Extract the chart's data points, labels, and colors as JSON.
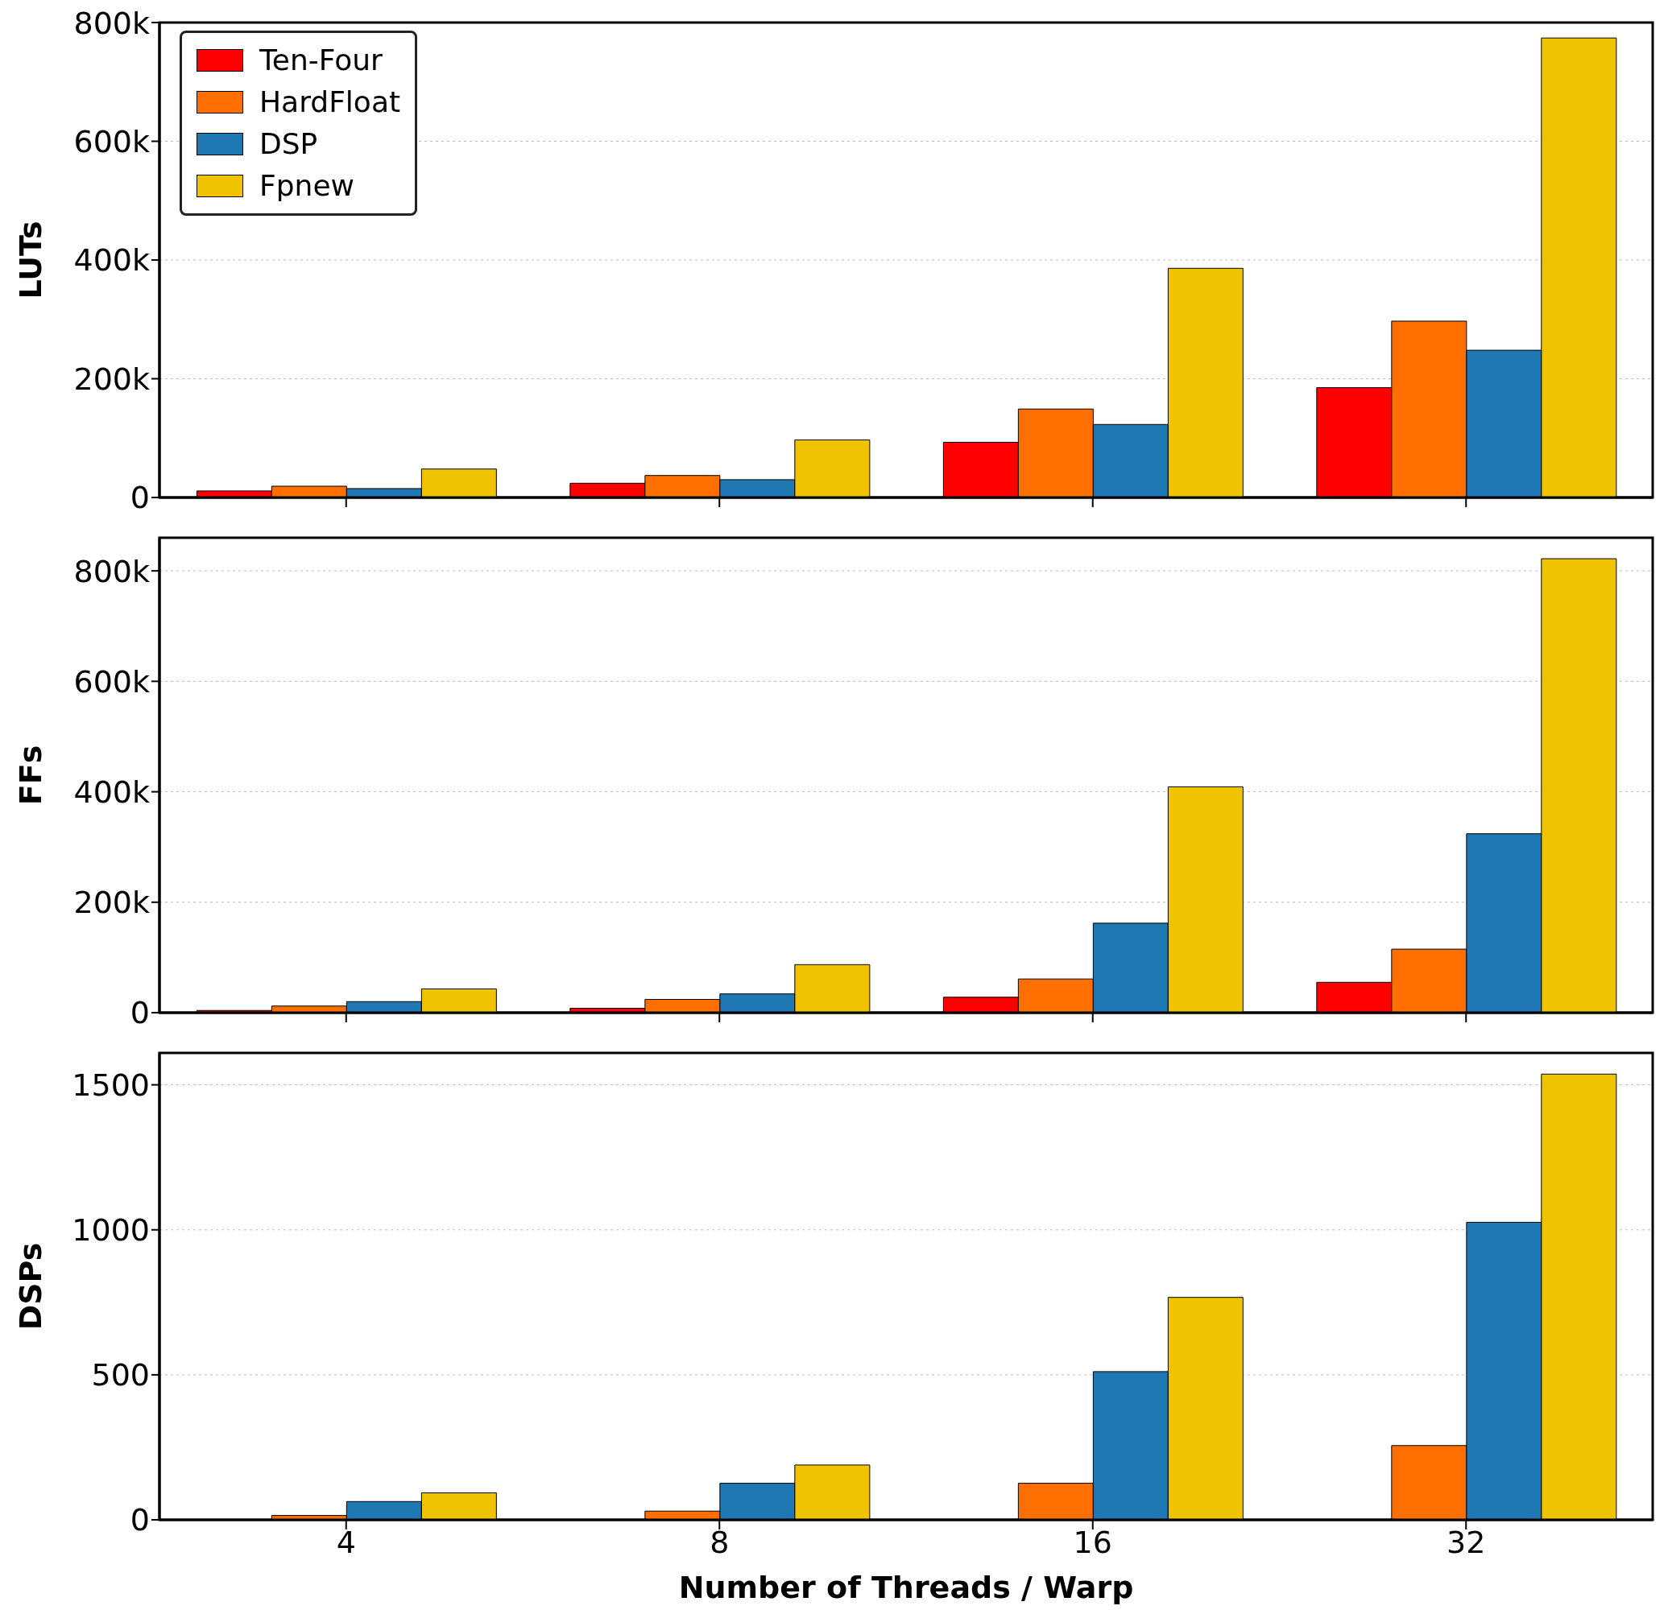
{
  "chart_data": [
    {
      "type": "bar",
      "ylabel": "LUTs",
      "categories": [
        "4",
        "8",
        "16",
        "32"
      ],
      "ylim": [
        0,
        800000
      ],
      "yticks": [
        {
          "value": 0,
          "label": "0"
        },
        {
          "value": 200000,
          "label": "200k"
        },
        {
          "value": 400000,
          "label": "400k"
        },
        {
          "value": 600000,
          "label": "600k"
        },
        {
          "value": 800000,
          "label": "800k"
        }
      ],
      "grid": "y",
      "legend": "top left",
      "tick_labels": "y",
      "series": [
        {
          "name": "Ten-Four",
          "color": "#ff0000",
          "values": [
            11000,
            24000,
            93000,
            185000
          ]
        },
        {
          "name": "HardFloat",
          "color": "#ff6f00",
          "values": [
            19000,
            37000,
            149000,
            297000
          ]
        },
        {
          "name": "DSP",
          "color": "#1f77b4",
          "values": [
            15000,
            30000,
            123000,
            248000
          ]
        },
        {
          "name": "Fpnew",
          "color": "#f0c300",
          "values": [
            48000,
            97000,
            386000,
            774000
          ]
        }
      ]
    },
    {
      "type": "bar",
      "ylabel": "FFs",
      "categories": [
        "4",
        "8",
        "16",
        "32"
      ],
      "ylim": [
        0,
        860000
      ],
      "yticks": [
        {
          "value": 0,
          "label": "0"
        },
        {
          "value": 200000,
          "label": "200k"
        },
        {
          "value": 400000,
          "label": "400k"
        },
        {
          "value": 600000,
          "label": "600k"
        },
        {
          "value": 800000,
          "label": "800k"
        }
      ],
      "grid": "y",
      "tick_labels": "y",
      "series": [
        {
          "color": "#ff0000",
          "values": [
            4000,
            8000,
            28000,
            55000
          ]
        },
        {
          "color": "#ff6f00",
          "values": [
            12000,
            24000,
            61000,
            115000
          ]
        },
        {
          "color": "#1f77b4",
          "values": [
            20000,
            34000,
            162000,
            324000
          ]
        },
        {
          "color": "#f0c300",
          "values": [
            43000,
            87000,
            409000,
            822000
          ]
        }
      ]
    },
    {
      "type": "bar",
      "ylabel": "DSPs",
      "xlabel": "Number of Threads / Warp",
      "categories": [
        "4",
        "8",
        "16",
        "32"
      ],
      "ylim": [
        0,
        1610
      ],
      "yticks": [
        0,
        500,
        1000,
        1500
      ],
      "grid": "y",
      "series": [
        {
          "color": "#ff0000",
          "values": [
            0,
            0,
            0,
            0
          ]
        },
        {
          "color": "#ff6f00",
          "values": [
            15,
            30,
            126,
            256
          ]
        },
        {
          "color": "#1f77b4",
          "values": [
            63,
            126,
            511,
            1026
          ]
        },
        {
          "color": "#f0c300",
          "values": [
            93,
            189,
            767,
            1537
          ]
        }
      ]
    }
  ]
}
